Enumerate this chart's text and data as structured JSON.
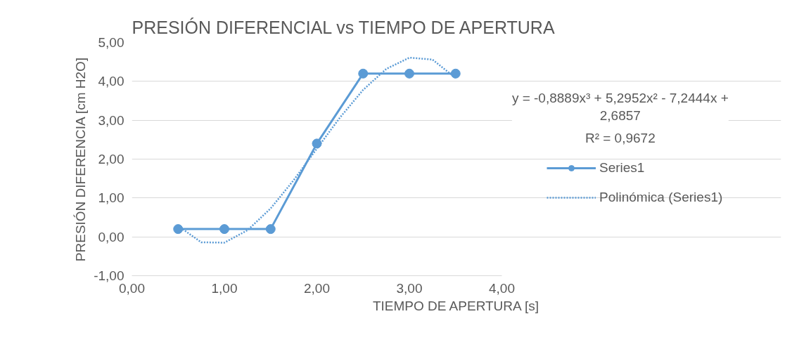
{
  "chart_data": {
    "type": "line",
    "title": "PRESIÓN DIFERENCIAL vs TIEMPO DE APERTURA",
    "xlabel": "TIEMPO DE APERTURA [s]",
    "ylabel": "PRESIÓN DIFERENCIA [cm H2O]",
    "series": [
      {
        "name": "Series1",
        "color": "#5b9bd5",
        "marker": "circle",
        "line_style": "solid",
        "x": [
          0.5,
          1.0,
          1.5,
          2.0,
          2.5,
          3.0,
          3.5
        ],
        "values": [
          0.2,
          0.2,
          0.2,
          2.4,
          4.2,
          4.2,
          4.2
        ]
      },
      {
        "name": "Polinómica (Series1)",
        "color": "#5b9bd5",
        "marker": "none",
        "line_style": "dotted",
        "x": [
          0.5,
          0.75,
          1.0,
          1.25,
          1.5,
          1.75,
          2.0,
          2.25,
          2.5,
          2.75,
          3.0,
          3.25,
          3.5
        ],
        "values": [
          0.28,
          -0.14,
          -0.15,
          0.17,
          0.73,
          1.46,
          2.27,
          3.07,
          3.78,
          4.32,
          4.61,
          4.56,
          4.09
        ]
      }
    ],
    "annotations": [
      "y = -0,8889x³ + 5,2952x² - 7,2444x + 2,6857",
      "R² = 0,9672"
    ],
    "xlim": [
      0,
      4
    ],
    "xticks": [
      {
        "value": 0,
        "label": "0,00"
      },
      {
        "value": 1,
        "label": "1,00"
      },
      {
        "value": 2,
        "label": "2,00"
      },
      {
        "value": 3,
        "label": "3,00"
      },
      {
        "value": 4,
        "label": "4,00"
      }
    ],
    "ylim": [
      -1,
      5
    ],
    "yticks": [
      {
        "value": -1,
        "label": "-1,00"
      },
      {
        "value": 0,
        "label": "0,00"
      },
      {
        "value": 1,
        "label": "1,00"
      },
      {
        "value": 2,
        "label": "2,00"
      },
      {
        "value": 3,
        "label": "3,00"
      },
      {
        "value": 4,
        "label": "4,00"
      },
      {
        "value": 5,
        "label": "5,00"
      }
    ],
    "grid": "y",
    "legend": "right"
  }
}
